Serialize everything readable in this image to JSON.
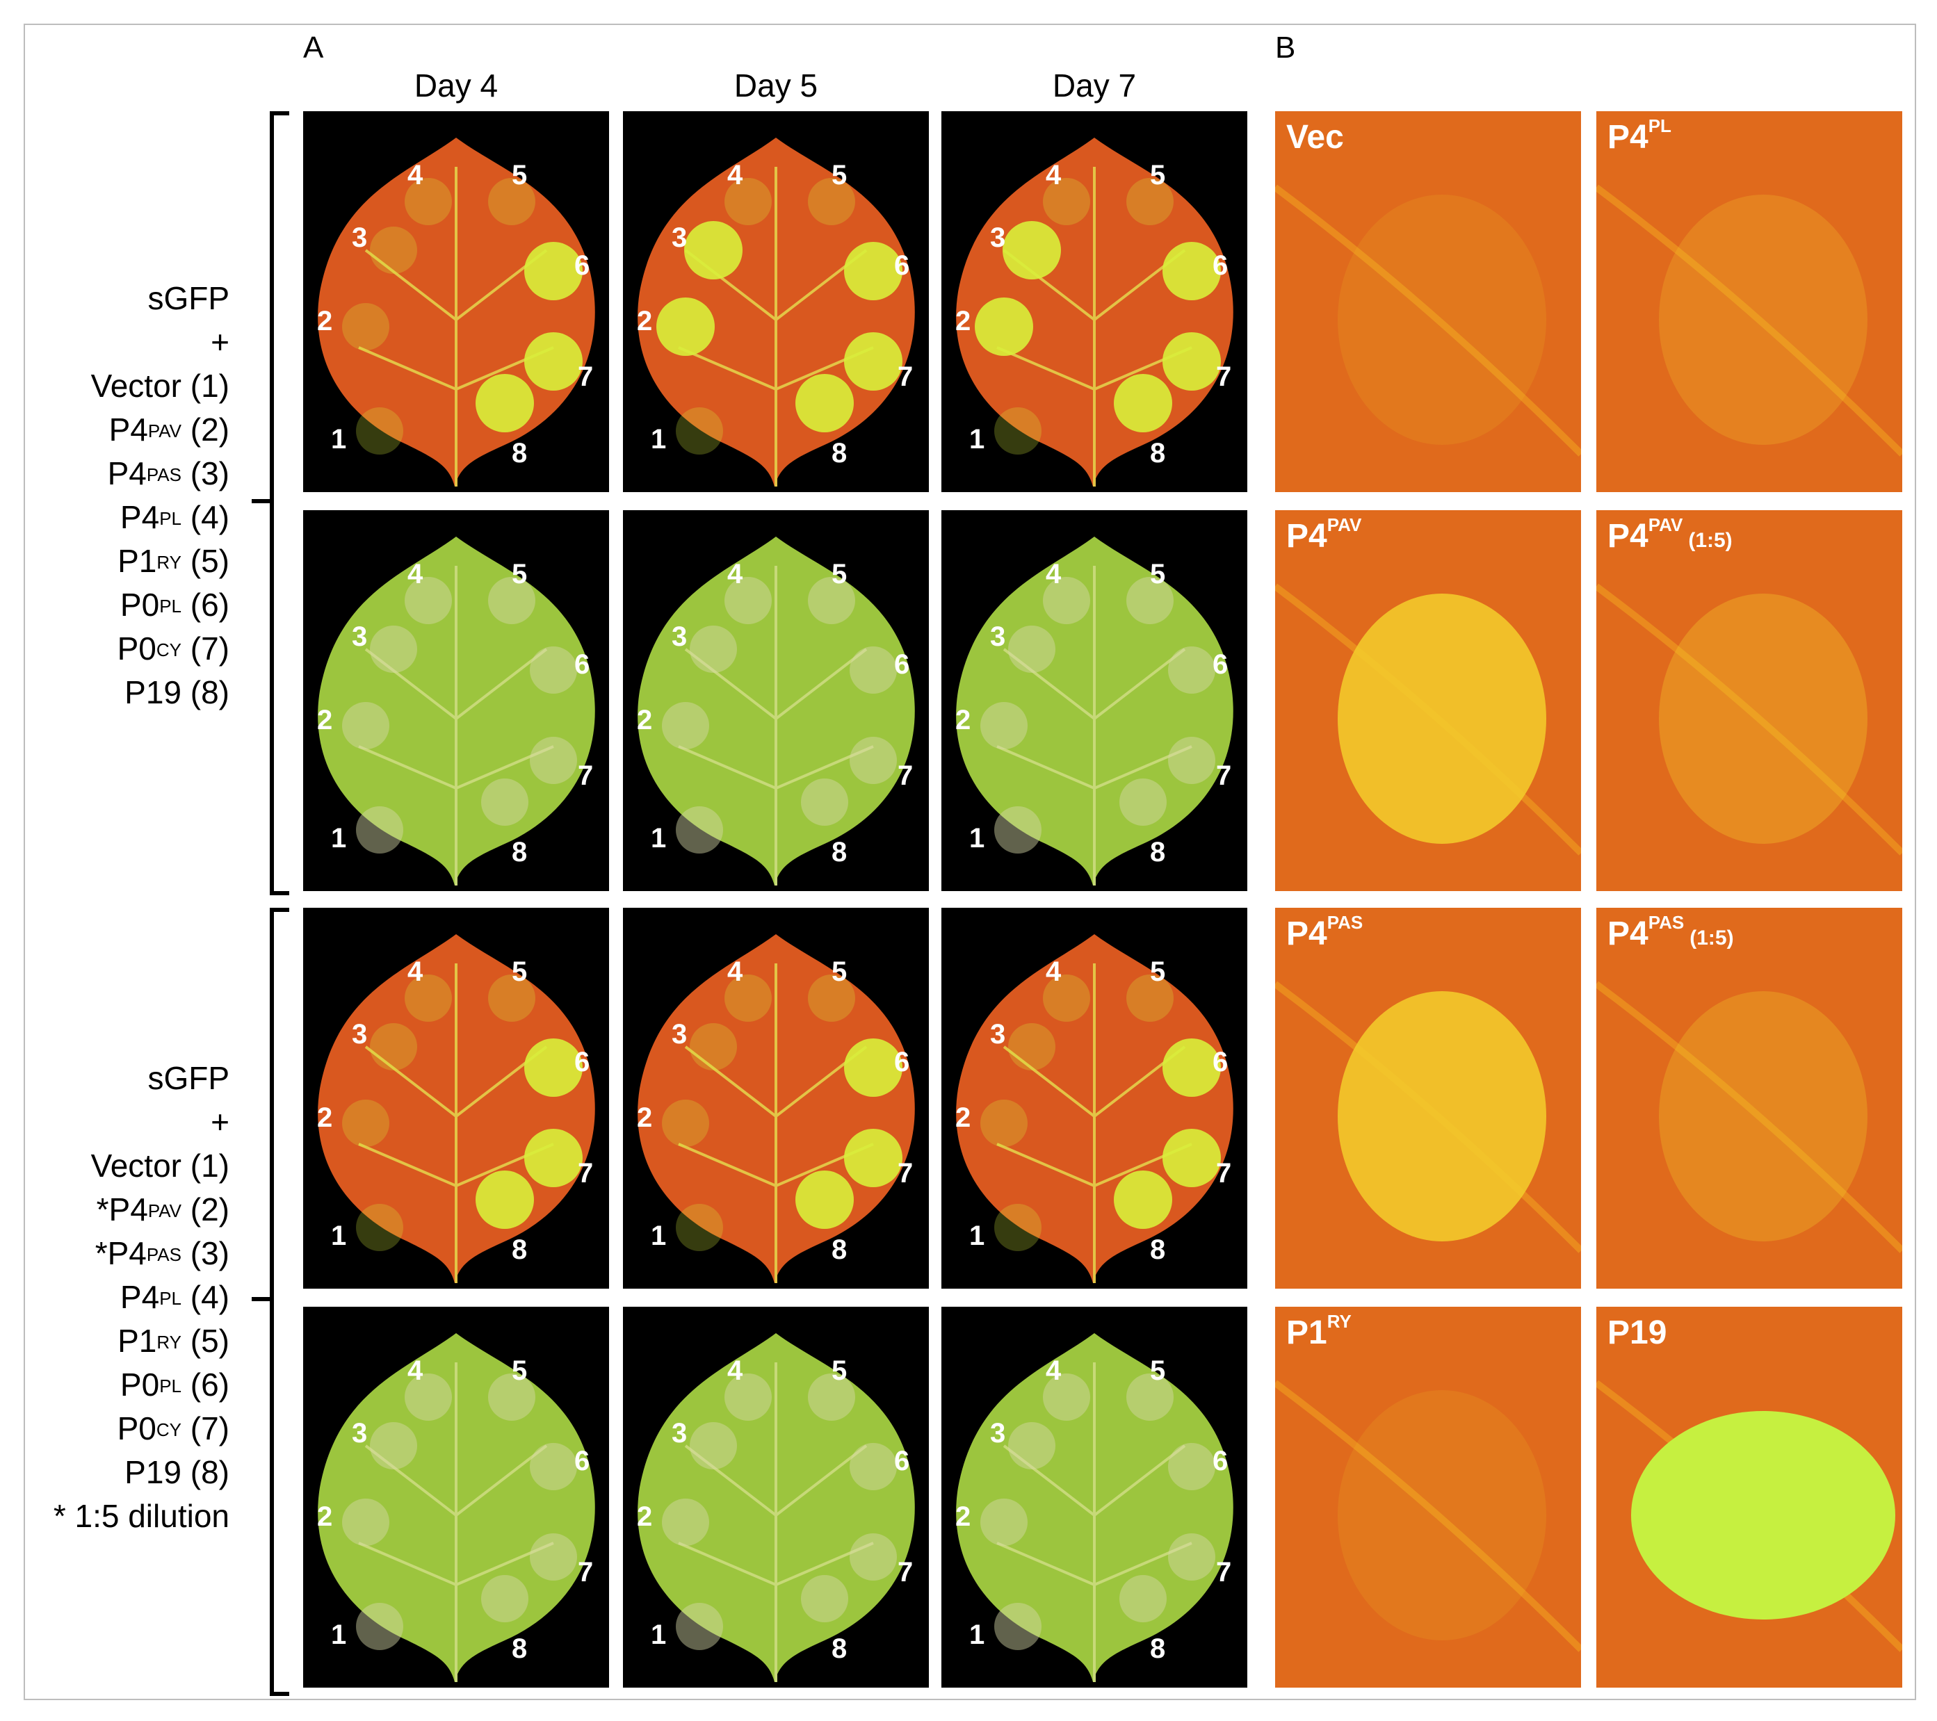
{
  "figure": {
    "panel_a_label": "A",
    "panel_b_label": "B",
    "columns": [
      "Day 4",
      "Day 5",
      "Day 7"
    ],
    "groups": [
      {
        "lines": [
          {
            "base": "sGFP",
            "sup": "",
            "tail": ""
          },
          {
            "base": "+",
            "sup": "",
            "tail": ""
          },
          {
            "base": "Vector",
            "sup": "",
            "tail": " (1)"
          },
          {
            "base": "P4",
            "sup": "PAV",
            "tail": " (2)"
          },
          {
            "base": "P4",
            "sup": "PAS",
            "tail": " (3)"
          },
          {
            "base": "P4",
            "sup": "PL",
            "tail": " (4)"
          },
          {
            "base": "P1",
            "sup": "RY",
            "tail": " (5)"
          },
          {
            "base": "P0",
            "sup": "PL",
            "tail": " (6)"
          },
          {
            "base": "P0",
            "sup": "CY",
            "tail": " (7)"
          },
          {
            "base": "P19",
            "sup": "",
            "tail": " (8)"
          }
        ]
      },
      {
        "lines": [
          {
            "base": "sGFP",
            "sup": "",
            "tail": ""
          },
          {
            "base": "+",
            "sup": "",
            "tail": ""
          },
          {
            "base": "Vector",
            "sup": "",
            "tail": " (1)"
          },
          {
            "base": "*P4",
            "sup": "PAV",
            "tail": " (2)"
          },
          {
            "base": "*P4",
            "sup": "PAS",
            "tail": " (3)"
          },
          {
            "base": "P4",
            "sup": "PL",
            "tail": " (4)"
          },
          {
            "base": "P1",
            "sup": "RY",
            "tail": " (5)"
          },
          {
            "base": "P0",
            "sup": "PL",
            "tail": " (6)"
          },
          {
            "base": "P0",
            "sup": "CY",
            "tail": " (7)"
          },
          {
            "base": "P19",
            "sup": "",
            "tail": " (8)"
          },
          {
            "base": "* 1:5 dilution",
            "sup": "",
            "tail": ""
          }
        ]
      }
    ],
    "leaf_numbers": [
      "1",
      "2",
      "3",
      "4",
      "5",
      "6",
      "7",
      "8"
    ],
    "panel_b_tiles": [
      {
        "base": "Vec",
        "sup": "",
        "dilution": ""
      },
      {
        "base": "P4",
        "sup": "PL",
        "dilution": ""
      },
      {
        "base": "P4",
        "sup": "PAV",
        "dilution": ""
      },
      {
        "base": "P4",
        "sup": "PAV",
        "dilution": "(1:5)"
      },
      {
        "base": "P4",
        "sup": "PAS",
        "dilution": ""
      },
      {
        "base": "P4",
        "sup": "PAS",
        "dilution": "(1:5)"
      },
      {
        "base": "P1",
        "sup": "RY",
        "dilution": ""
      },
      {
        "base": "P19",
        "sup": "",
        "dilution": ""
      }
    ]
  },
  "colors": {
    "uv_leaf": "#d9581f",
    "white_light_leaf": "#9cc53e",
    "gfp_spot": "#d8ef3a",
    "tile_background": "#000000",
    "panel_b_background": "#e06a1c"
  }
}
